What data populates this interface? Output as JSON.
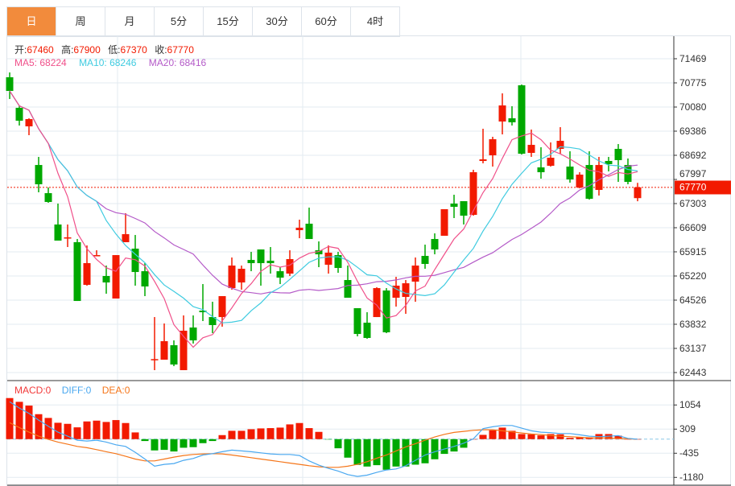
{
  "tabs": [
    "日",
    "周",
    "月",
    "5分",
    "15分",
    "30分",
    "60分",
    "4时"
  ],
  "active_tab": 0,
  "ohlc": {
    "open_label": "开:",
    "open": "67460",
    "high_label": "高:",
    "high": "67900",
    "low_label": "低:",
    "low": "67370",
    "close_label": "收:",
    "close": "67770"
  },
  "ma": {
    "ma5": "MA5: 68224",
    "ma10": "MA10: 68246",
    "ma20": "MA20: 68416"
  },
  "macd_legend": {
    "macd": "MACD:0",
    "diff": "DIFF:0",
    "dea": "DEA:0"
  },
  "colors": {
    "up": "#f21a00",
    "down": "#00a800",
    "ma5": "#f0508a",
    "ma10": "#3fcbe0",
    "ma20": "#b45ac8",
    "diff": "#4aa8f0",
    "dea": "#f5761a",
    "accent": "#f28b3c"
  },
  "current_price": "67770",
  "price_axis": [
    "71469",
    "70775",
    "70080",
    "69386",
    "68692",
    "67997",
    "67303",
    "66609",
    "65915",
    "65220",
    "64526",
    "63832",
    "63137",
    "62443"
  ],
  "macd_axis": [
    "1054",
    "309",
    "-435",
    "-1180"
  ],
  "chart_data": {
    "type": "candlestick",
    "candles": [
      [
        70936,
        71075,
        70311,
        70543
      ],
      [
        70057,
        70126,
        69548,
        69686
      ],
      [
        69524,
        69756,
        69270,
        69733
      ],
      [
        68413,
        68645,
        67627,
        67858
      ],
      [
        67603,
        67765,
        67326,
        67349
      ],
      [
        66701,
        67303,
        66238,
        66238
      ],
      [
        66307,
        66701,
        66053,
        66331
      ],
      [
        66192,
        66284,
        64502,
        64502
      ],
      [
        64965,
        66099,
        64942,
        65590
      ],
      [
        65798,
        65960,
        65798,
        65821
      ],
      [
        65220,
        65520,
        64710,
        65034
      ],
      [
        64572,
        65821,
        64572,
        65821
      ],
      [
        66192,
        67025,
        66192,
        66423
      ],
      [
        66007,
        66400,
        64942,
        65335
      ],
      [
        65358,
        65590,
        64641,
        64919
      ],
      [
        62813,
        64039,
        62512,
        62830
      ],
      [
        62813,
        63854,
        62813,
        63345
      ],
      [
        63229,
        63368,
        62627,
        62674
      ],
      [
        62512,
        64086,
        62512,
        63646
      ],
      [
        63738,
        64086,
        63276,
        63368
      ],
      [
        64224,
        64988,
        63924,
        64178
      ],
      [
        64039,
        64479,
        63576,
        63808
      ],
      [
        64039,
        64641,
        63762,
        64641
      ],
      [
        64872,
        65752,
        64826,
        65520
      ],
      [
        65034,
        65520,
        64826,
        65428
      ],
      [
        65682,
        65914,
        65358,
        65590
      ],
      [
        65983,
        65983,
        64942,
        65590
      ],
      [
        65659,
        66053,
        65289,
        65590
      ],
      [
        65358,
        65474,
        64988,
        65173
      ],
      [
        65289,
        65960,
        65220,
        65706
      ],
      [
        66539,
        66840,
        66307,
        66608
      ],
      [
        66724,
        67187,
        66284,
        66284
      ],
      [
        65960,
        66215,
        65474,
        65844
      ],
      [
        65544,
        66099,
        65289,
        65891
      ],
      [
        65821,
        65914,
        65312,
        65451
      ],
      [
        65104,
        65520,
        64595,
        64595
      ],
      [
        64294,
        64294,
        63484,
        63553
      ],
      [
        63877,
        64178,
        63414,
        63438
      ],
      [
        64039,
        64896,
        64039,
        64872
      ],
      [
        64803,
        64872,
        63576,
        63600
      ],
      [
        64595,
        65196,
        64340,
        64942
      ],
      [
        64618,
        65104,
        64132,
        65011
      ],
      [
        65058,
        65752,
        64479,
        65520
      ],
      [
        65798,
        66122,
        65428,
        65567
      ],
      [
        66284,
        66446,
        65844,
        65983
      ],
      [
        66377,
        67141,
        66377,
        67141
      ],
      [
        67303,
        67557,
        66886,
        67210
      ],
      [
        67372,
        67372,
        66701,
        66955
      ],
      [
        66979,
        68275,
        66955,
        68205
      ],
      [
        68529,
        69455,
        68460,
        68575
      ],
      [
        68691,
        69224,
        68367,
        69154
      ],
      [
        69663,
        70473,
        69293,
        70126
      ],
      [
        69756,
        70103,
        69548,
        69640
      ],
      [
        70705,
        70728,
        68714,
        68737
      ],
      [
        68761,
        69432,
        68645,
        68992
      ],
      [
        68344,
        68923,
        68020,
        68205
      ],
      [
        68390,
        69062,
        68367,
        68622
      ],
      [
        68876,
        69501,
        68737,
        69108
      ],
      [
        68367,
        68807,
        67904,
        67997
      ],
      [
        67765,
        68205,
        67742,
        68136
      ],
      [
        68413,
        68807,
        67418,
        67441
      ],
      [
        67696,
        68645,
        67534,
        68413
      ],
      [
        68529,
        68645,
        68228,
        68437
      ],
      [
        68876,
        69015,
        67927,
        68552
      ],
      [
        68413,
        68599,
        67858,
        67927
      ],
      [
        67460,
        67900,
        67370,
        67770
      ]
    ],
    "ylim": [
      62443,
      71469
    ],
    "macd_hist": [
      1267,
      1151,
      1035,
      770,
      654,
      505,
      472,
      364,
      546,
      571,
      530,
      588,
      497,
      207,
      -58,
      -348,
      -331,
      -381,
      -265,
      -248,
      -124,
      -58,
      124,
      257,
      257,
      306,
      331,
      340,
      356,
      455,
      497,
      340,
      224,
      -8,
      -282,
      -571,
      -795,
      -845,
      -803,
      -944,
      -845,
      -845,
      -787,
      -745,
      -621,
      -455,
      -381,
      -265,
      0,
      132,
      273,
      356,
      257,
      157,
      149,
      116,
      157,
      149,
      41,
      58,
      58,
      157,
      157,
      108,
      0,
      0
    ],
    "diff": [
      1151,
      960,
      795,
      588,
      397,
      215,
      91,
      -33,
      -58,
      -33,
      -91,
      -174,
      -224,
      -406,
      -613,
      -836,
      -778,
      -753,
      -654,
      -596,
      -489,
      -447,
      -389,
      -339,
      -364,
      -389,
      -422,
      -455,
      -472,
      -472,
      -505,
      -671,
      -803,
      -903,
      -985,
      -1093,
      -1151,
      -1110,
      -1027,
      -952,
      -919,
      -820,
      -654,
      -489,
      -389,
      -306,
      -224,
      -124,
      8,
      323,
      381,
      422,
      422,
      340,
      257,
      215,
      199,
      174,
      174,
      132,
      91,
      75,
      91,
      108,
      25,
      0
    ],
    "dea": [
      505,
      356,
      215,
      91,
      -8,
      -91,
      -157,
      -224,
      -265,
      -323,
      -389,
      -447,
      -530,
      -613,
      -671,
      -671,
      -613,
      -555,
      -505,
      -472,
      -455,
      -447,
      -455,
      -489,
      -530,
      -571,
      -613,
      -654,
      -696,
      -737,
      -778,
      -820,
      -853,
      -869,
      -869,
      -836,
      -778,
      -696,
      -588,
      -489,
      -364,
      -240,
      -141,
      -33,
      66,
      149,
      207,
      240,
      273,
      290,
      290,
      257,
      224,
      190,
      157,
      141,
      116,
      91,
      75,
      58,
      41,
      41,
      33,
      25,
      8,
      0
    ],
    "macd_ylim": [
      -1180,
      1054
    ]
  }
}
